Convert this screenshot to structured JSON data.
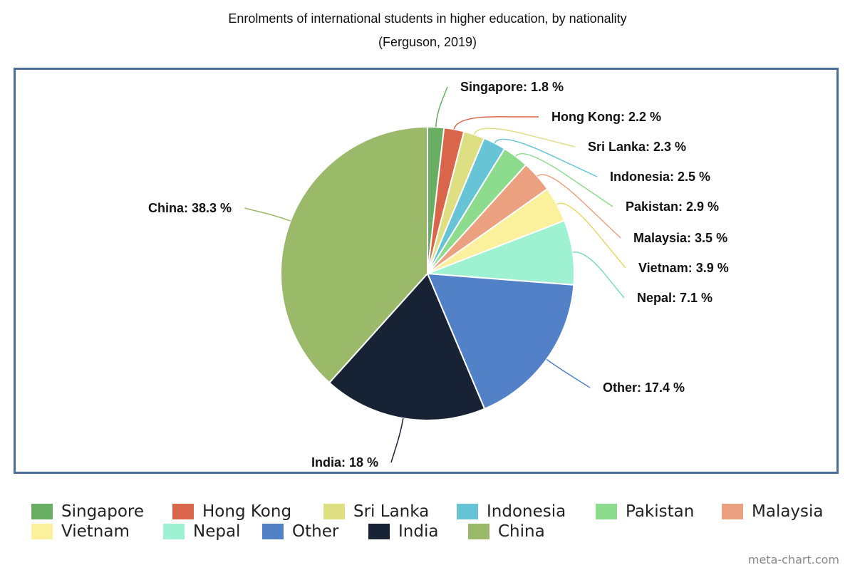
{
  "chart_data": {
    "type": "pie",
    "title": "Enrolments of international students in higher education, by nationality",
    "subtitle": "(Ferguson, 2019)",
    "slices": [
      {
        "name": "Singapore",
        "value": 1.8,
        "label": "Singapore: 1.8 %",
        "color": "#6aae63"
      },
      {
        "name": "Hong Kong",
        "value": 2.2,
        "label": "Hong Kong: 2.2 %",
        "color": "#d9664b"
      },
      {
        "name": "Sri Lanka",
        "value": 2.3,
        "label": "Sri Lanka: 2.3 %",
        "color": "#dede82"
      },
      {
        "name": "Indonesia",
        "value": 2.5,
        "label": "Indonesia: 2.5 %",
        "color": "#66c4d6"
      },
      {
        "name": "Pakistan",
        "value": 2.9,
        "label": "Pakistan: 2.9 %",
        "color": "#8ddc8e"
      },
      {
        "name": "Malaysia",
        "value": 3.5,
        "label": "Malaysia: 3.5 %",
        "color": "#eba07f"
      },
      {
        "name": "Vietnam",
        "value": 3.9,
        "label": "Vietnam: 3.9 %",
        "color": "#fbf09b"
      },
      {
        "name": "Nepal",
        "value": 7.1,
        "label": "Nepal: 7.1 %",
        "color": "#9ef1d1"
      },
      {
        "name": "Other",
        "value": 17.4,
        "label": "Other: 17.4 %",
        "color": "#5281c7"
      },
      {
        "name": "India",
        "value": 18,
        "label": "India: 18 %",
        "color": "#172335"
      },
      {
        "name": "China",
        "value": 38.3,
        "label": "China: 38.3 %",
        "color": "#9aba6a"
      }
    ],
    "legend_position": "bottom"
  },
  "watermark": "meta-chart.com"
}
